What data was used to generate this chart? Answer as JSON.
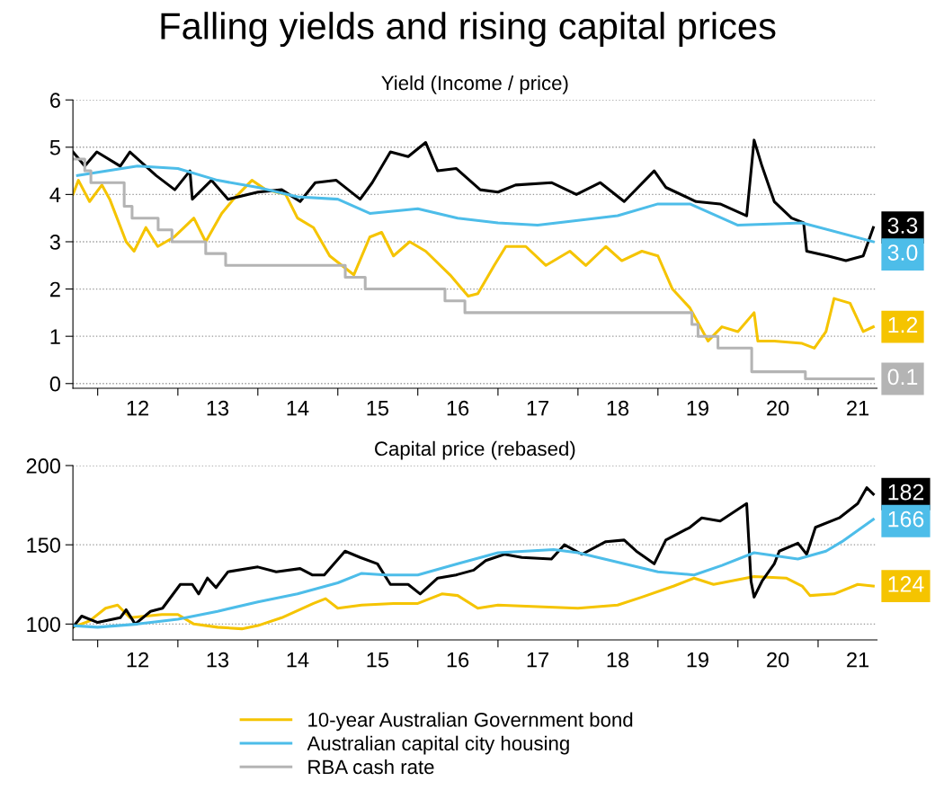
{
  "chart_data": [
    {
      "type": "line",
      "title": "Falling yields and rising capital prices",
      "subtitle": "Yield (Income / price)",
      "legend": "bottom",
      "grid": "y",
      "xlim": [
        "2011-09-10",
        "2021-09-27"
      ],
      "ylim": [
        -0.1,
        6
      ],
      "yticks": [
        0,
        1,
        2,
        3,
        4,
        5,
        6
      ],
      "xticks": [
        {
          "value": "2012-01-01",
          "label": null
        },
        {
          "value": "2012-07-01",
          "label": "12"
        },
        {
          "value": "2013-01-01",
          "label": null
        },
        {
          "value": "2013-07-01",
          "label": "13"
        },
        {
          "value": "2014-01-01",
          "label": null
        },
        {
          "value": "2014-07-01",
          "label": "14"
        },
        {
          "value": "2015-01-01",
          "label": null
        },
        {
          "value": "2015-07-01",
          "label": "15"
        },
        {
          "value": "2016-01-01",
          "label": null
        },
        {
          "value": "2016-07-01",
          "label": "16"
        },
        {
          "value": "2017-01-01",
          "label": null
        },
        {
          "value": "2017-07-01",
          "label": "17"
        },
        {
          "value": "2018-01-01",
          "label": null
        },
        {
          "value": "2018-07-01",
          "label": "18"
        },
        {
          "value": "2019-01-01",
          "label": null
        },
        {
          "value": "2019-07-01",
          "label": "19"
        },
        {
          "value": "2020-01-01",
          "label": null
        },
        {
          "value": "2020-07-01",
          "label": "20"
        },
        {
          "value": "2021-01-01",
          "label": null
        },
        {
          "value": "2021-07-01",
          "label": "21"
        }
      ],
      "series": [
        {
          "name": "10-year Australian Government bond",
          "color": "#f5c400",
          "x": [
            "2011-09-10",
            "2011-10-05",
            "2011-11-25",
            "2012-01-20",
            "2012-02-25",
            "2012-05-10",
            "2012-06-15",
            "2012-08-08",
            "2012-10-01",
            "2012-12-15",
            "2013-03-15",
            "2013-05-08",
            "2013-07-20",
            "2013-09-12",
            "2013-12-05",
            "2014-02-06",
            "2014-05-08",
            "2014-07-01",
            "2014-09-12",
            "2014-11-25",
            "2015-03-15",
            "2015-05-27",
            "2015-07-20",
            "2015-09-12",
            "2015-11-25",
            "2016-02-06",
            "2016-05-27",
            "2016-08-18",
            "2016-10-01",
            "2016-12-15",
            "2017-02-06",
            "2017-05-08",
            "2017-08-08",
            "2017-11-25",
            "2018-02-06",
            "2018-05-08",
            "2018-07-20",
            "2018-10-20",
            "2019-01-01",
            "2019-03-08",
            "2019-05-27",
            "2019-08-18",
            "2019-10-20",
            "2020-01-01",
            "2020-03-15",
            "2020-04-01",
            "2020-06-15",
            "2020-10-20",
            "2020-12-15",
            "2021-02-06",
            "2021-03-15",
            "2021-05-27",
            "2021-07-26",
            "2021-09-10"
          ],
          "values": [
            4.0,
            4.3,
            3.85,
            4.2,
            3.9,
            3.0,
            2.8,
            3.3,
            2.9,
            3.1,
            3.5,
            3.0,
            3.6,
            3.9,
            4.3,
            4.1,
            4.0,
            3.5,
            3.3,
            2.7,
            2.3,
            3.1,
            3.2,
            2.7,
            3.0,
            2.8,
            2.3,
            1.85,
            1.9,
            2.5,
            2.9,
            2.9,
            2.5,
            2.8,
            2.5,
            2.9,
            2.6,
            2.8,
            2.7,
            2.0,
            1.6,
            0.9,
            1.2,
            1.1,
            1.5,
            0.9,
            0.9,
            0.85,
            0.75,
            1.1,
            1.8,
            1.7,
            1.1,
            1.2
          ],
          "value_labels": [
            null,
            null,
            null,
            null,
            null,
            null,
            null,
            null,
            null,
            null,
            null,
            null,
            null,
            null,
            null,
            null,
            null,
            null,
            null,
            null,
            null,
            null,
            null,
            null,
            null,
            null,
            null,
            null,
            null,
            null,
            null,
            null,
            null,
            null,
            null,
            null,
            null,
            null,
            null,
            null,
            null,
            null,
            null,
            null,
            null,
            null,
            null,
            null,
            null,
            null,
            null,
            null,
            null,
            "1.2"
          ]
        },
        {
          "color": "#000000",
          "x": [
            "2011-09-10",
            "2011-11-03",
            "2011-12-28",
            "2012-04-13",
            "2012-05-27",
            "2012-09-24",
            "2012-12-18",
            "2013-02-25",
            "2013-03-08",
            "2013-06-03",
            "2013-08-18",
            "2014-01-01",
            "2014-04-20",
            "2014-07-13",
            "2014-09-20",
            "2014-12-25",
            "2015-04-13",
            "2015-06-07",
            "2015-08-29",
            "2015-11-18",
            "2016-02-06",
            "2016-04-01",
            "2016-06-24",
            "2016-10-12",
            "2017-01-01",
            "2017-03-22",
            "2017-09-02",
            "2017-12-25",
            "2018-04-13",
            "2018-07-31",
            "2018-12-15",
            "2019-02-06",
            "2019-06-24",
            "2019-10-12",
            "2020-02-10",
            "2020-03-15",
            "2020-04-20",
            "2020-06-15",
            "2020-09-02",
            "2020-10-27",
            "2020-11-10",
            "2021-02-14",
            "2021-05-08",
            "2021-07-26",
            "2021-09-10"
          ],
          "values": [
            4.9,
            4.6,
            4.9,
            4.6,
            4.9,
            4.4,
            4.1,
            4.5,
            3.9,
            4.3,
            3.9,
            4.05,
            4.1,
            3.85,
            4.25,
            4.3,
            3.9,
            4.25,
            4.9,
            4.8,
            5.1,
            4.5,
            4.55,
            4.1,
            4.05,
            4.2,
            4.25,
            4.0,
            4.25,
            3.85,
            4.5,
            4.15,
            3.85,
            3.8,
            3.55,
            5.15,
            4.6,
            3.85,
            3.5,
            3.4,
            2.8,
            2.7,
            2.6,
            2.7,
            3.3
          ],
          "value_labels": [
            null,
            null,
            null,
            null,
            null,
            null,
            null,
            null,
            null,
            null,
            null,
            null,
            null,
            null,
            null,
            null,
            null,
            null,
            null,
            null,
            null,
            null,
            null,
            null,
            null,
            null,
            null,
            null,
            null,
            null,
            null,
            null,
            null,
            null,
            null,
            null,
            null,
            null,
            null,
            null,
            null,
            null,
            null,
            null,
            "3.3"
          ]
        },
        {
          "name": "Australian capital city housing",
          "color": "#4dbde9",
          "x": [
            "2011-10-01",
            "2012-07-01",
            "2013-01-01",
            "2013-07-01",
            "2014-01-01",
            "2014-07-01",
            "2015-01-01",
            "2015-05-27",
            "2016-01-01",
            "2016-07-01",
            "2017-01-01",
            "2017-07-01",
            "2018-01-01",
            "2018-07-01",
            "2019-01-01",
            "2019-05-27",
            "2020-01-01",
            "2020-10-20",
            "2021-09-10"
          ],
          "values": [
            4.4,
            4.6,
            4.55,
            4.3,
            4.15,
            3.95,
            3.9,
            3.6,
            3.7,
            3.5,
            3.4,
            3.35,
            3.45,
            3.55,
            3.8,
            3.8,
            3.35,
            3.4,
            3.0
          ],
          "value_labels": [
            null,
            null,
            null,
            null,
            null,
            null,
            null,
            null,
            null,
            null,
            null,
            null,
            null,
            null,
            null,
            null,
            null,
            null,
            "3.0"
          ]
        },
        {
          "name": "RBA cash rate",
          "type": "step",
          "color": "#b4b4b4",
          "x": [
            "2011-09-10",
            "2011-11-03",
            "2011-12-01",
            "2012-05-01",
            "2012-06-06",
            "2012-10-03",
            "2012-12-05",
            "2013-05-08",
            "2013-08-07",
            "2015-02-04",
            "2015-05-06",
            "2016-05-04",
            "2016-08-03",
            "2019-06-05",
            "2019-07-03",
            "2019-10-02",
            "2020-03-04",
            "2020-11-04",
            "2021-09-10"
          ],
          "values": [
            4.75,
            4.5,
            4.25,
            3.75,
            3.5,
            3.25,
            3.0,
            2.75,
            2.5,
            2.25,
            2.0,
            1.75,
            1.5,
            1.25,
            1.0,
            0.75,
            0.25,
            0.1,
            0.1
          ],
          "value_labels": [
            null,
            null,
            null,
            null,
            null,
            null,
            null,
            null,
            null,
            null,
            null,
            null,
            null,
            null,
            null,
            null,
            null,
            null,
            "0.1"
          ]
        }
      ]
    },
    {
      "type": "line",
      "title": "Capital price (rebased)",
      "grid": "y",
      "xlim": [
        "2011-09-10",
        "2021-09-27"
      ],
      "ylim": [
        90,
        200
      ],
      "yticks": [
        100,
        150,
        200
      ],
      "xticks": [
        {
          "value": "2012-01-01",
          "label": null
        },
        {
          "value": "2012-07-01",
          "label": "12"
        },
        {
          "value": "2013-01-01",
          "label": null
        },
        {
          "value": "2013-07-01",
          "label": "13"
        },
        {
          "value": "2014-01-01",
          "label": null
        },
        {
          "value": "2014-07-01",
          "label": "14"
        },
        {
          "value": "2015-01-01",
          "label": null
        },
        {
          "value": "2015-07-01",
          "label": "15"
        },
        {
          "value": "2016-01-01",
          "label": null
        },
        {
          "value": "2016-07-01",
          "label": "16"
        },
        {
          "value": "2017-01-01",
          "label": null
        },
        {
          "value": "2017-07-01",
          "label": "17"
        },
        {
          "value": "2018-01-01",
          "label": null
        },
        {
          "value": "2018-07-01",
          "label": "18"
        },
        {
          "value": "2019-01-01",
          "label": null
        },
        {
          "value": "2019-07-01",
          "label": "19"
        },
        {
          "value": "2020-01-01",
          "label": null
        },
        {
          "value": "2020-07-01",
          "label": "20"
        },
        {
          "value": "2021-01-01",
          "label": null
        },
        {
          "value": "2021-07-01",
          "label": "21"
        }
      ],
      "series": [
        {
          "color": "#f5c400",
          "x": [
            "2011-09-10",
            "2011-11-25",
            "2012-02-06",
            "2012-04-01",
            "2012-05-27",
            "2012-10-20",
            "2013-01-01",
            "2013-03-15",
            "2013-07-01",
            "2013-10-20",
            "2014-01-01",
            "2014-04-20",
            "2014-09-12",
            "2014-11-06",
            "2015-01-01",
            "2015-04-20",
            "2015-09-12",
            "2016-01-01",
            "2016-04-20",
            "2016-07-01",
            "2016-10-01",
            "2017-01-01",
            "2017-07-01",
            "2018-01-01",
            "2018-07-01",
            "2018-10-20",
            "2019-03-15",
            "2019-06-15",
            "2019-09-12",
            "2020-01-01",
            "2020-03-15",
            "2020-08-08",
            "2020-10-20",
            "2020-11-25",
            "2021-03-15",
            "2021-07-01",
            "2021-09-10"
          ],
          "values": [
            98,
            102,
            110,
            112,
            104,
            106,
            106,
            100,
            98,
            97,
            99,
            104,
            113,
            116,
            110,
            112,
            113,
            113,
            119,
            118,
            110,
            112,
            111,
            110,
            112,
            117,
            124,
            129,
            125,
            128,
            130,
            129,
            124,
            118,
            119,
            125,
            124
          ],
          "value_labels": [
            null,
            null,
            null,
            null,
            null,
            null,
            null,
            null,
            null,
            null,
            null,
            null,
            null,
            null,
            null,
            null,
            null,
            null,
            null,
            null,
            null,
            null,
            null,
            null,
            null,
            null,
            null,
            null,
            null,
            null,
            null,
            null,
            null,
            null,
            null,
            null,
            "124"
          ]
        },
        {
          "color": "#000000",
          "x": [
            "2011-09-10",
            "2011-10-20",
            "2012-01-01",
            "2012-04-13",
            "2012-05-10",
            "2012-06-20",
            "2012-08-29",
            "2012-10-23",
            "2013-01-12",
            "2013-03-08",
            "2013-04-06",
            "2013-05-16",
            "2013-06-24",
            "2013-08-18",
            "2014-01-01",
            "2014-03-26",
            "2014-07-13",
            "2014-09-06",
            "2014-10-31",
            "2015-02-03",
            "2015-04-13",
            "2015-07-01",
            "2015-08-29",
            "2015-11-18",
            "2016-01-12",
            "2016-04-01",
            "2016-06-24",
            "2016-09-12",
            "2016-11-06",
            "2017-01-30",
            "2017-04-20",
            "2017-09-02",
            "2017-10-31",
            "2018-01-19",
            "2018-05-08",
            "2018-07-31",
            "2018-09-24",
            "2018-12-15",
            "2019-02-06",
            "2019-05-27",
            "2019-07-20",
            "2019-10-12",
            "2020-02-10",
            "2020-03-01",
            "2020-03-15",
            "2020-04-20",
            "2020-06-15",
            "2020-07-08",
            "2020-10-01",
            "2020-11-10",
            "2020-12-20",
            "2021-04-08",
            "2021-07-01",
            "2021-08-11",
            "2021-09-10"
          ],
          "values": [
            98,
            105,
            101,
            104,
            109,
            100,
            108,
            110,
            125,
            125,
            119,
            129,
            123,
            133,
            136,
            133,
            135,
            131,
            131,
            146,
            142,
            138,
            125,
            125,
            119,
            129,
            131,
            134,
            140,
            144,
            142,
            141,
            150,
            144,
            152,
            153,
            146,
            138,
            153,
            161,
            167,
            165,
            176,
            127,
            117,
            127,
            138,
            146,
            151,
            144,
            161,
            167,
            176,
            186,
            182
          ],
          "value_labels": [
            null,
            null,
            null,
            null,
            null,
            null,
            null,
            null,
            null,
            null,
            null,
            null,
            null,
            null,
            null,
            null,
            null,
            null,
            null,
            null,
            null,
            null,
            null,
            null,
            null,
            null,
            null,
            null,
            null,
            null,
            null,
            null,
            null,
            null,
            null,
            null,
            null,
            null,
            null,
            null,
            null,
            null,
            null,
            null,
            null,
            null,
            null,
            null,
            null,
            null,
            null,
            null,
            null,
            null,
            "182"
          ]
        },
        {
          "color": "#4dbde9",
          "x": [
            "2011-09-10",
            "2012-01-01",
            "2012-07-01",
            "2013-01-01",
            "2013-07-01",
            "2014-01-01",
            "2014-07-01",
            "2015-01-01",
            "2015-04-20",
            "2015-08-08",
            "2016-01-01",
            "2016-07-01",
            "2017-01-01",
            "2017-09-12",
            "2018-01-01",
            "2018-07-01",
            "2019-01-01",
            "2019-06-15",
            "2019-10-20",
            "2020-03-15",
            "2020-10-01",
            "2021-02-06",
            "2021-04-20",
            "2021-09-10"
          ],
          "values": [
            99,
            98,
            100,
            103,
            108,
            114,
            119,
            126,
            132,
            131,
            131,
            138,
            145,
            147,
            145,
            139,
            133,
            131,
            137,
            145,
            141,
            146,
            152,
            166
          ],
          "value_labels": [
            null,
            null,
            null,
            null,
            null,
            null,
            null,
            null,
            null,
            null,
            null,
            null,
            null,
            null,
            null,
            null,
            null,
            null,
            null,
            null,
            null,
            null,
            null,
            "166"
          ]
        }
      ]
    }
  ]
}
